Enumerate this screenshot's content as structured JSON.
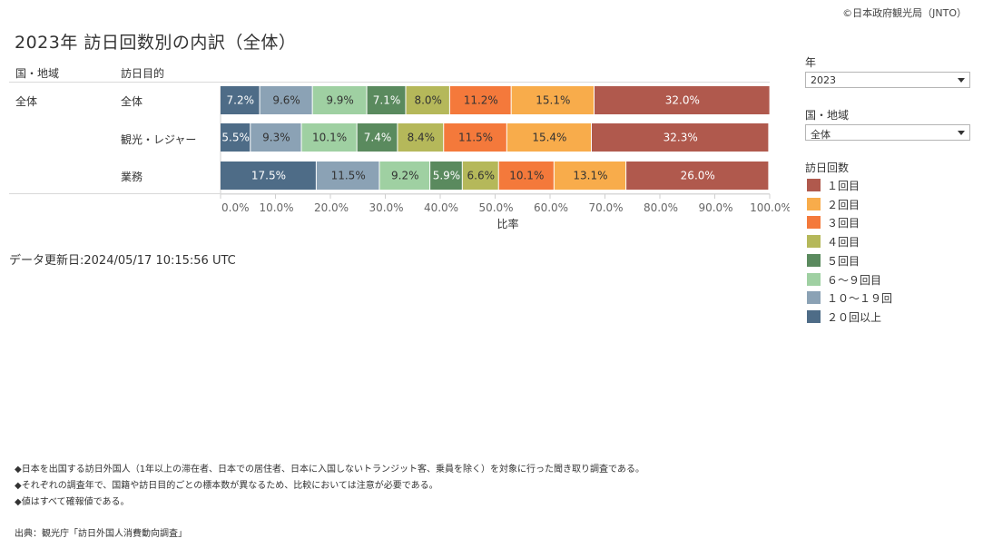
{
  "header": {
    "copyright": "©日本政府観光局（JNTO）",
    "title": "2023年 訪日回数別の内訳（全体）"
  },
  "table": {
    "col_country": "国・地域",
    "col_purpose": "訪日目的",
    "country_value": "全体",
    "rows": [
      {
        "purpose": "全体"
      },
      {
        "purpose": "観光・レジャー"
      },
      {
        "purpose": "業務"
      }
    ]
  },
  "colors": {
    "20回以上": "#4e6c87",
    "10〜19回": "#8ba2b5",
    "6〜9回": "#9fd0a2",
    "5回": "#5a8a5e",
    "4回": "#b5b85a",
    "3回": "#f4793b",
    "2回": "#f8ac4b",
    "1回": "#b0594d"
  },
  "chart_data": {
    "type": "bar",
    "orientation": "horizontal",
    "stacked": true,
    "categories": [
      "全体",
      "観光・レジャー",
      "業務"
    ],
    "series": [
      {
        "name": "２０回以上",
        "values": [
          7.2,
          5.5,
          17.5
        ]
      },
      {
        "name": "１０〜１９回",
        "values": [
          9.6,
          9.3,
          11.5
        ]
      },
      {
        "name": "６〜９回目",
        "values": [
          9.9,
          10.1,
          9.2
        ]
      },
      {
        "name": "５回目",
        "values": [
          7.1,
          7.4,
          5.9
        ]
      },
      {
        "name": "４回目",
        "values": [
          8.0,
          8.4,
          6.6
        ]
      },
      {
        "name": "３回目",
        "values": [
          11.2,
          11.5,
          10.1
        ]
      },
      {
        "name": "２回目",
        "values": [
          15.1,
          15.4,
          13.1
        ]
      },
      {
        "name": "１回目",
        "values": [
          32.0,
          32.3,
          26.0
        ]
      }
    ],
    "xlabel": "比率",
    "xlim": [
      0,
      100
    ],
    "x_ticks": [
      "0.0%",
      "10.0%",
      "20.0%",
      "30.0%",
      "40.0%",
      "50.0%",
      "60.0%",
      "70.0%",
      "80.0%",
      "90.0%",
      "100.0%"
    ],
    "value_format": "percent_1dp"
  },
  "filters": {
    "year_label": "年",
    "year_value": "2023",
    "region_label": "国・地域",
    "region_value": "全体",
    "legend_title": "訪日回数"
  },
  "legend": [
    {
      "label": "１回目",
      "color": "#b0594d"
    },
    {
      "label": "２回目",
      "color": "#f8ac4b"
    },
    {
      "label": "３回目",
      "color": "#f4793b"
    },
    {
      "label": "４回目",
      "color": "#b5b85a"
    },
    {
      "label": "５回目",
      "color": "#5a8a5e"
    },
    {
      "label": "６〜９回目",
      "color": "#9fd0a2"
    },
    {
      "label": "１０〜１９回",
      "color": "#8ba2b5"
    },
    {
      "label": "２０回以上",
      "color": "#4e6c87"
    }
  ],
  "footer": {
    "updated": "データ更新日:2024/05/17 10:15:56 UTC",
    "notes": [
      "◆日本を出国する訪日外国人（1年以上の滞在者、日本での居住者、日本に入国しないトランジット客、乗員を除く）を対象に行った聞き取り調査である。",
      "◆それぞれの調査年で、国籍や訪日目的ごとの標本数が異なるため、比較においては注意が必要である。",
      "◆値はすべて確報値である。"
    ],
    "source": "出典：観光庁「訪日外国人消費動向調査」"
  }
}
